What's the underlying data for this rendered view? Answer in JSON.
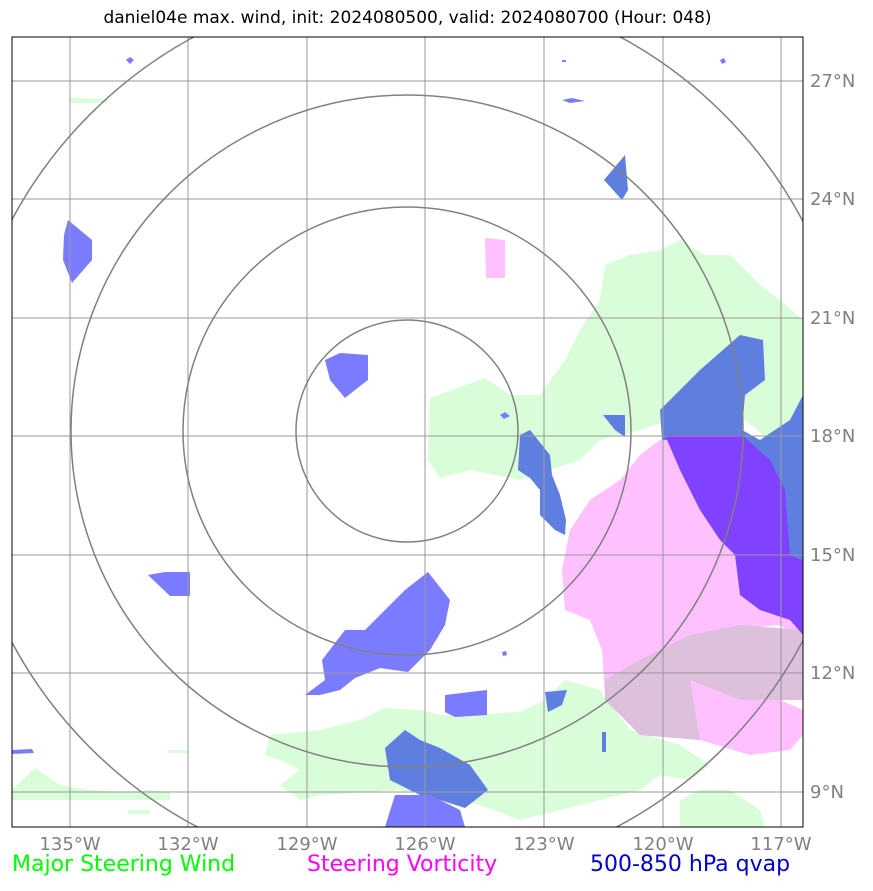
{
  "title": "daniel04e max. wind, init: 2024080500, valid: 2024080700 (Hour: 048)",
  "longitude_labels": [
    "135°W",
    "132°W",
    "129°W",
    "126°W",
    "123°W",
    "120°W",
    "117°W"
  ],
  "latitude_labels": [
    "27°N",
    "24°N",
    "21°N",
    "18°N",
    "15°N",
    "12°N",
    "9°N"
  ],
  "legend": [
    {
      "label": "Major Steering Wind",
      "color": "#00ff00"
    },
    {
      "label": "Steering Vorticity",
      "color": "#ff00ff"
    },
    {
      "label": "500-850 hPa qvap",
      "color": "#0000cc"
    }
  ],
  "colors": {
    "wind_fill": "#d9fcd9",
    "vorticity_fill": "#ffc0ff",
    "qvap_fill": "#7b7bff",
    "overlap_wind_qvap": "#5f7fe0",
    "overlap_vort_qvap": "#8042ff",
    "overlap_vort_wind": "#dcc0dc",
    "grid": "#999999",
    "range_rings": "#808080"
  }
}
